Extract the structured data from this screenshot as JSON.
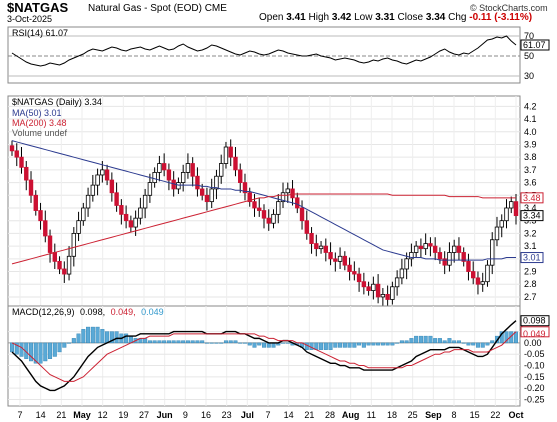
{
  "header": {
    "ticker": "$NATGAS",
    "description": "Natural Gas - Spot (EOD)  CME",
    "date": "3-Oct-2025",
    "logo": "© StockCharts.com",
    "open_label": "Open",
    "open": "3.41",
    "high_label": "High",
    "high": "3.42",
    "low_label": "Low",
    "low": "3.31",
    "close_label": "Close",
    "close": "3.34",
    "chg_label": "Chg",
    "chg": "-0.11 (-3.11%)",
    "chg_color": "#cc0000"
  },
  "chart_data": [
    {
      "type": "line",
      "panel": "RSI",
      "legend": "RSI(14) 61.07",
      "ylim": [
        24,
        78
      ],
      "y_ticks": [
        30,
        50,
        70
      ],
      "value_label": "61.07",
      "series": [
        {
          "name": "RSI(14)",
          "values": [
            53,
            50,
            47,
            44,
            42,
            41,
            40,
            41,
            43,
            42,
            41,
            43,
            46,
            48,
            50,
            52,
            55,
            57,
            56,
            55,
            57,
            59,
            58,
            56,
            55,
            57,
            58,
            59,
            57,
            56,
            58,
            60,
            58,
            56,
            57,
            60,
            62,
            59,
            57,
            55,
            56,
            58,
            61,
            60,
            58,
            56,
            54,
            52,
            51,
            53,
            55,
            54,
            52,
            51,
            52,
            54,
            56,
            55,
            53,
            52,
            51,
            50,
            50,
            51,
            52,
            50,
            49,
            48,
            46,
            47,
            48,
            47,
            46,
            44,
            43,
            44,
            46,
            45,
            47,
            48,
            46,
            45,
            43,
            42,
            44,
            46,
            45,
            47,
            49,
            52,
            55,
            57,
            54,
            52,
            51,
            53,
            52,
            55,
            58,
            62,
            66,
            67,
            69,
            68,
            70,
            65,
            61
          ]
        }
      ]
    },
    {
      "type": "candlestick",
      "panel": "price",
      "legend": "$NATGAS (Daily) 3.34",
      "ylim": [
        2.55,
        4.25
      ],
      "y_ticks": [
        2.7,
        2.8,
        2.9,
        3.0,
        3.1,
        3.2,
        3.3,
        3.4,
        3.5,
        3.6,
        3.7,
        3.8,
        3.9,
        4.0,
        4.1,
        4.2
      ],
      "x_tick_labels": [
        "7",
        "14",
        "21",
        "May",
        "12",
        "19",
        "27",
        "Jun",
        "9",
        "16",
        "23",
        "Jul",
        "7",
        "14",
        "21",
        "28",
        "Aug",
        "11",
        "18",
        "25",
        "Sep",
        "8",
        "15",
        "22",
        "Oct"
      ],
      "ohlc_closes": [
        3.85,
        3.8,
        3.72,
        3.62,
        3.5,
        3.38,
        3.3,
        3.18,
        3.05,
        2.98,
        2.92,
        2.88,
        3.02,
        3.2,
        3.3,
        3.4,
        3.5,
        3.58,
        3.66,
        3.7,
        3.62,
        3.52,
        3.42,
        3.35,
        3.3,
        3.25,
        3.32,
        3.4,
        3.5,
        3.6,
        3.68,
        3.75,
        3.7,
        3.62,
        3.55,
        3.6,
        3.68,
        3.75,
        3.65,
        3.55,
        3.5,
        3.45,
        3.55,
        3.65,
        3.75,
        3.88,
        3.8,
        3.7,
        3.6,
        3.52,
        3.45,
        3.4,
        3.38,
        3.32,
        3.28,
        3.35,
        3.45,
        3.52,
        3.55,
        3.48,
        3.4,
        3.3,
        3.2,
        3.12,
        3.08,
        3.1,
        3.05,
        3.0,
        2.98,
        3.02,
        2.95,
        2.9,
        2.88,
        2.82,
        2.78,
        2.75,
        2.8,
        2.7,
        2.72,
        2.68,
        2.78,
        2.85,
        2.92,
        3.0,
        3.05,
        3.1,
        3.08,
        3.12,
        3.1,
        3.05,
        3.0,
        2.95,
        3.05,
        3.1,
        3.05,
        2.98,
        2.9,
        2.85,
        2.8,
        2.82,
        2.95,
        3.15,
        3.25,
        3.3,
        3.4,
        3.45,
        3.34
      ],
      "series": [
        {
          "name": "MA(50) 3.01",
          "color": "#2b3a8f",
          "values": [
            3.93,
            3.92,
            3.91,
            3.9,
            3.89,
            3.88,
            3.87,
            3.86,
            3.85,
            3.84,
            3.83,
            3.82,
            3.81,
            3.8,
            3.79,
            3.78,
            3.77,
            3.76,
            3.75,
            3.74,
            3.73,
            3.72,
            3.71,
            3.7,
            3.69,
            3.68,
            3.67,
            3.66,
            3.65,
            3.64,
            3.63,
            3.62,
            3.61,
            3.6,
            3.59,
            3.58,
            3.58,
            3.58,
            3.58,
            3.58,
            3.57,
            3.57,
            3.56,
            3.56,
            3.55,
            3.55,
            3.55,
            3.54,
            3.54,
            3.53,
            3.53,
            3.52,
            3.51,
            3.5,
            3.49,
            3.48,
            3.47,
            3.46,
            3.45,
            3.44,
            3.43,
            3.41,
            3.39,
            3.37,
            3.35,
            3.33,
            3.31,
            3.29,
            3.27,
            3.25,
            3.23,
            3.21,
            3.19,
            3.17,
            3.15,
            3.13,
            3.11,
            3.09,
            3.07,
            3.06,
            3.05,
            3.04,
            3.03,
            3.02,
            3.01,
            3.01,
            3.01,
            3.0,
            3.0,
            3.0,
            2.99,
            2.99,
            2.99,
            2.99,
            2.99,
            2.99,
            2.99,
            2.99,
            2.99,
            2.99,
            3.0,
            3.0,
            3.0,
            3.0,
            3.01,
            3.01,
            3.01
          ]
        },
        {
          "name": "MA(200) 3.48",
          "color": "#cc2233",
          "values": [
            2.96,
            2.97,
            2.98,
            2.99,
            3.0,
            3.01,
            3.02,
            3.03,
            3.04,
            3.05,
            3.06,
            3.07,
            3.08,
            3.09,
            3.1,
            3.11,
            3.12,
            3.13,
            3.14,
            3.15,
            3.16,
            3.17,
            3.18,
            3.19,
            3.2,
            3.21,
            3.22,
            3.23,
            3.24,
            3.25,
            3.26,
            3.27,
            3.28,
            3.29,
            3.3,
            3.31,
            3.32,
            3.33,
            3.34,
            3.35,
            3.36,
            3.37,
            3.38,
            3.39,
            3.4,
            3.41,
            3.42,
            3.43,
            3.44,
            3.45,
            3.46,
            3.47,
            3.48,
            3.48,
            3.49,
            3.49,
            3.5,
            3.5,
            3.5,
            3.51,
            3.51,
            3.51,
            3.51,
            3.51,
            3.51,
            3.51,
            3.51,
            3.51,
            3.51,
            3.51,
            3.51,
            3.51,
            3.51,
            3.51,
            3.51,
            3.51,
            3.51,
            3.51,
            3.51,
            3.51,
            3.5,
            3.5,
            3.5,
            3.5,
            3.5,
            3.5,
            3.5,
            3.5,
            3.5,
            3.5,
            3.5,
            3.5,
            3.49,
            3.49,
            3.49,
            3.49,
            3.49,
            3.49,
            3.49,
            3.48,
            3.48,
            3.48,
            3.48,
            3.48,
            3.48,
            3.48,
            3.48
          ]
        }
      ],
      "legend_entries": [
        "MA(50) 3.01",
        "MA(200) 3.48",
        "Volume undef"
      ],
      "value_labels": [
        "3.48",
        "3.34",
        "3.01"
      ]
    },
    {
      "type": "line",
      "panel": "MACD",
      "legend_prefix": "MACD(12,26,9)",
      "legend_macd": "0.098,",
      "legend_signal": "0.049,",
      "legend_hist": "0.049",
      "ylim": [
        -0.27,
        0.11
      ],
      "y_ticks": [
        0.05,
        0.0,
        -0.05,
        -0.1,
        -0.15,
        -0.2,
        -0.25
      ],
      "y_tick_labels": [
        "0.05",
        "0.00",
        "-0.05",
        "-0.10",
        "-0.15",
        "-0.20",
        "-0.25"
      ],
      "value_labels": [
        "0.098",
        "0.049"
      ],
      "series": [
        {
          "name": "MACD",
          "color": "#000000",
          "values": [
            -0.04,
            -0.06,
            -0.08,
            -0.11,
            -0.14,
            -0.17,
            -0.19,
            -0.2,
            -0.21,
            -0.21,
            -0.2,
            -0.19,
            -0.17,
            -0.15,
            -0.12,
            -0.09,
            -0.06,
            -0.04,
            -0.02,
            -0.01,
            0.0,
            0.01,
            0.02,
            0.02,
            0.03,
            0.03,
            0.03,
            0.04,
            0.04,
            0.04,
            0.04,
            0.04,
            0.04,
            0.04,
            0.05,
            0.05,
            0.05,
            0.05,
            0.05,
            0.05,
            0.05,
            0.04,
            0.04,
            0.04,
            0.04,
            0.05,
            0.05,
            0.05,
            0.04,
            0.04,
            0.03,
            0.02,
            0.02,
            0.01,
            0.0,
            0.0,
            0.0,
            0.01,
            0.01,
            0.0,
            -0.01,
            -0.02,
            -0.04,
            -0.05,
            -0.06,
            -0.07,
            -0.08,
            -0.09,
            -0.09,
            -0.1,
            -0.1,
            -0.11,
            -0.11,
            -0.11,
            -0.12,
            -0.12,
            -0.12,
            -0.12,
            -0.12,
            -0.12,
            -0.12,
            -0.11,
            -0.1,
            -0.09,
            -0.08,
            -0.06,
            -0.05,
            -0.04,
            -0.03,
            -0.03,
            -0.03,
            -0.03,
            -0.02,
            -0.02,
            -0.02,
            -0.03,
            -0.04,
            -0.05,
            -0.06,
            -0.06,
            -0.05,
            -0.02,
            0.01,
            0.04,
            0.06,
            0.08,
            0.098
          ]
        },
        {
          "name": "Signal",
          "color": "#cc2233",
          "values": [
            0.0,
            -0.01,
            -0.02,
            -0.04,
            -0.06,
            -0.08,
            -0.1,
            -0.12,
            -0.14,
            -0.15,
            -0.16,
            -0.17,
            -0.17,
            -0.17,
            -0.16,
            -0.15,
            -0.13,
            -0.11,
            -0.09,
            -0.07,
            -0.05,
            -0.04,
            -0.03,
            -0.02,
            -0.01,
            0.0,
            0.01,
            0.02,
            0.02,
            0.03,
            0.03,
            0.03,
            0.03,
            0.03,
            0.04,
            0.04,
            0.04,
            0.04,
            0.04,
            0.04,
            0.04,
            0.04,
            0.04,
            0.04,
            0.04,
            0.04,
            0.04,
            0.04,
            0.04,
            0.04,
            0.04,
            0.04,
            0.03,
            0.03,
            0.02,
            0.02,
            0.01,
            0.01,
            0.01,
            0.01,
            0.0,
            0.0,
            -0.01,
            -0.02,
            -0.03,
            -0.04,
            -0.05,
            -0.06,
            -0.07,
            -0.08,
            -0.08,
            -0.09,
            -0.09,
            -0.1,
            -0.1,
            -0.11,
            -0.11,
            -0.11,
            -0.11,
            -0.11,
            -0.11,
            -0.11,
            -0.11,
            -0.1,
            -0.1,
            -0.09,
            -0.08,
            -0.07,
            -0.06,
            -0.05,
            -0.05,
            -0.04,
            -0.04,
            -0.03,
            -0.03,
            -0.03,
            -0.03,
            -0.04,
            -0.04,
            -0.04,
            -0.04,
            -0.03,
            -0.02,
            -0.01,
            0.01,
            0.03,
            0.049
          ]
        }
      ]
    }
  ]
}
